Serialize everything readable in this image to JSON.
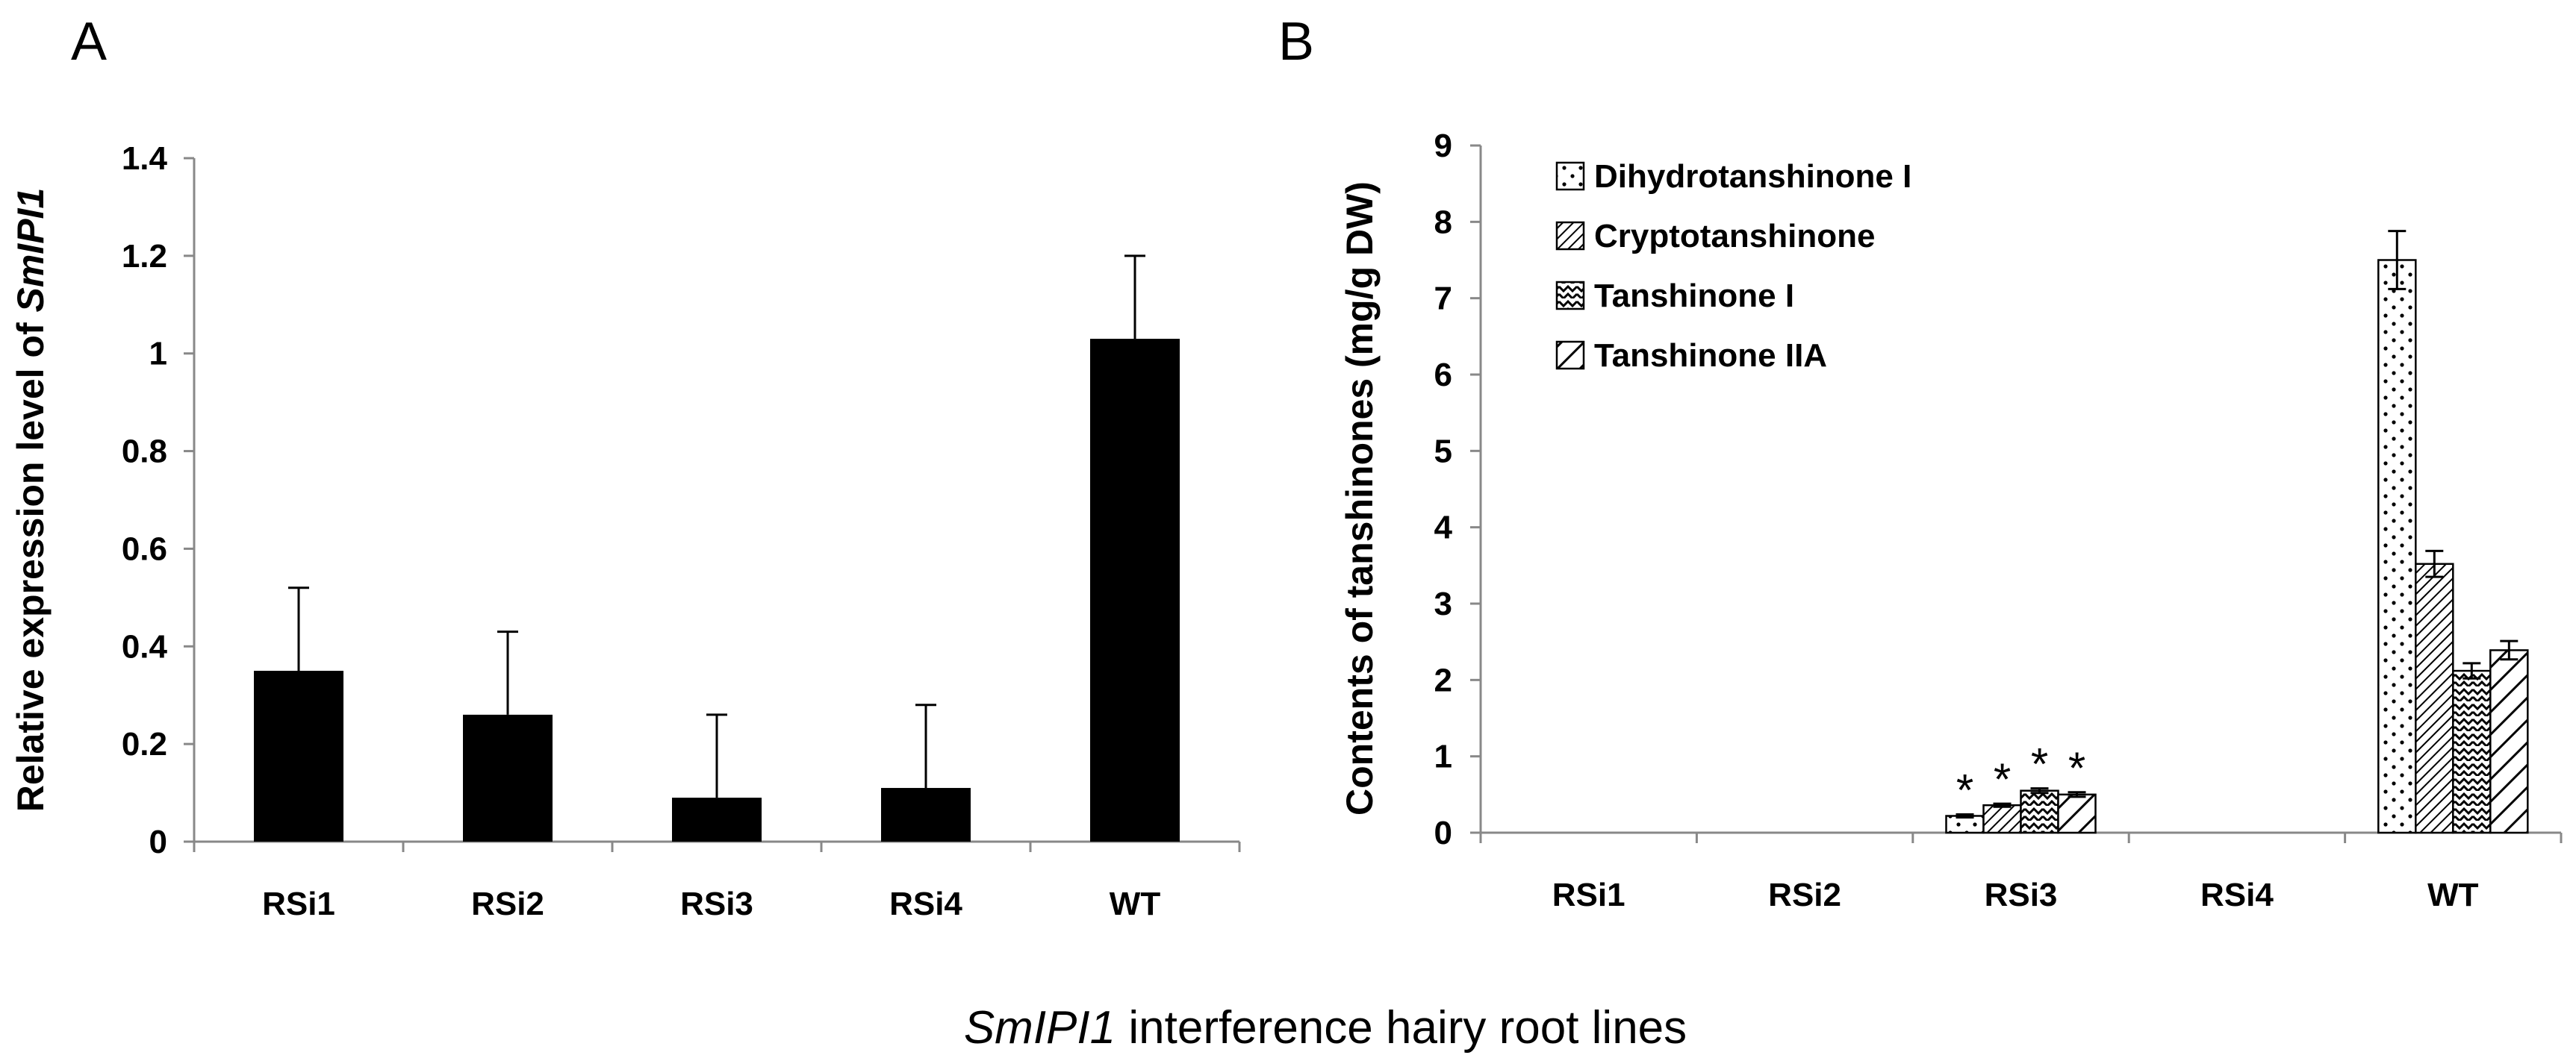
{
  "caption": {
    "italic": "SmIPI1",
    "rest": " interference hairy root lines"
  },
  "chart_data": [
    {
      "panel": "A",
      "type": "bar",
      "title": "",
      "xlabel": "",
      "ylabel_prefix": "Relative expression level of ",
      "ylabel_italic": "SmIPI1",
      "categories": [
        "RSi1",
        "RSi2",
        "RSi3",
        "RSi4",
        "WT"
      ],
      "series": [
        {
          "name": "SmIPI1",
          "values": [
            0.35,
            0.26,
            0.09,
            0.11,
            1.03
          ],
          "errors": [
            0.17,
            0.17,
            0.17,
            0.17,
            0.17
          ]
        }
      ],
      "ylim": [
        0,
        1.4
      ],
      "yticks": [
        0,
        0.2,
        0.4,
        0.6,
        0.8,
        1,
        1.2,
        1.4
      ],
      "ytick_labels": [
        "0",
        "0.2",
        "0.4",
        "0.6",
        "0.8",
        "1",
        "1.2",
        "1.4"
      ],
      "bar_color": "#000000",
      "grid": false
    },
    {
      "panel": "B",
      "type": "bar",
      "title": "",
      "xlabel": "",
      "ylabel": "Contents of tanshinones (mg/g DW)",
      "categories": [
        "RSi1",
        "RSi2",
        "RSi3",
        "RSi4",
        "WT"
      ],
      "series": [
        {
          "name": "Dihydrotanshinone I",
          "pattern": "dots",
          "values": [
            null,
            null,
            0.22,
            null,
            7.5
          ],
          "errors": [
            null,
            null,
            0.02,
            null,
            0.38
          ]
        },
        {
          "name": "Cryptotanshinone",
          "pattern": "diag-dense",
          "values": [
            null,
            null,
            0.36,
            null,
            3.52
          ],
          "errors": [
            null,
            null,
            0.02,
            null,
            0.17
          ]
        },
        {
          "name": "Tanshinone I",
          "pattern": "zigzag",
          "values": [
            null,
            null,
            0.55,
            null,
            2.12
          ],
          "errors": [
            null,
            null,
            0.03,
            null,
            0.1
          ]
        },
        {
          "name": "Tanshinone IIA",
          "pattern": "diag-wide",
          "values": [
            null,
            null,
            0.5,
            null,
            2.39
          ],
          "errors": [
            null,
            null,
            0.03,
            null,
            0.12
          ]
        }
      ],
      "annotations": [
        {
          "category": "RSi3",
          "series": "Dihydrotanshinone I",
          "text": "*"
        },
        {
          "category": "RSi3",
          "series": "Cryptotanshinone",
          "text": "*"
        },
        {
          "category": "RSi3",
          "series": "Tanshinone I",
          "text": "*"
        },
        {
          "category": "RSi3",
          "series": "Tanshinone IIA",
          "text": "*"
        }
      ],
      "ylim": [
        0,
        9
      ],
      "yticks": [
        0,
        1,
        2,
        3,
        4,
        5,
        6,
        7,
        8,
        9
      ],
      "ytick_labels": [
        "0",
        "1",
        "2",
        "3",
        "4",
        "5",
        "6",
        "7",
        "8",
        "9"
      ],
      "legend_position": "top-left",
      "grid": false
    }
  ]
}
